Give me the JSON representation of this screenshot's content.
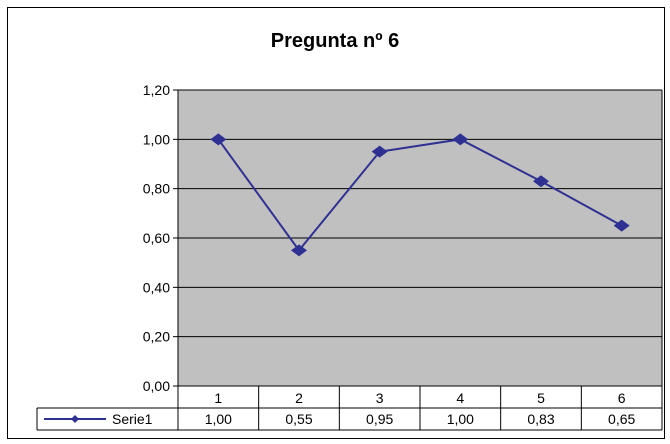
{
  "chart_data": {
    "type": "line",
    "title": "Pregunta nº 6",
    "xlabel": "",
    "ylabel": "",
    "categories": [
      "1",
      "2",
      "3",
      "4",
      "5",
      "6"
    ],
    "series": [
      {
        "name": "Serie1",
        "values": [
          1.0,
          0.55,
          0.95,
          1.0,
          0.83,
          0.65
        ],
        "value_labels": [
          "1,00",
          "0,55",
          "0,95",
          "1,00",
          "0,83",
          "0,65"
        ]
      }
    ],
    "ylim": [
      0,
      1.2
    ],
    "yticks": [
      0,
      0.2,
      0.4,
      0.6,
      0.8,
      1.0,
      1.2
    ],
    "ytick_labels": [
      "0,00",
      "0,20",
      "0,40",
      "0,60",
      "0,80",
      "1,00",
      "1,20"
    ],
    "grid": true,
    "plot_background": "#c0c0c0",
    "line_color": "#2e3192",
    "marker": "diamond",
    "data_table": true
  }
}
